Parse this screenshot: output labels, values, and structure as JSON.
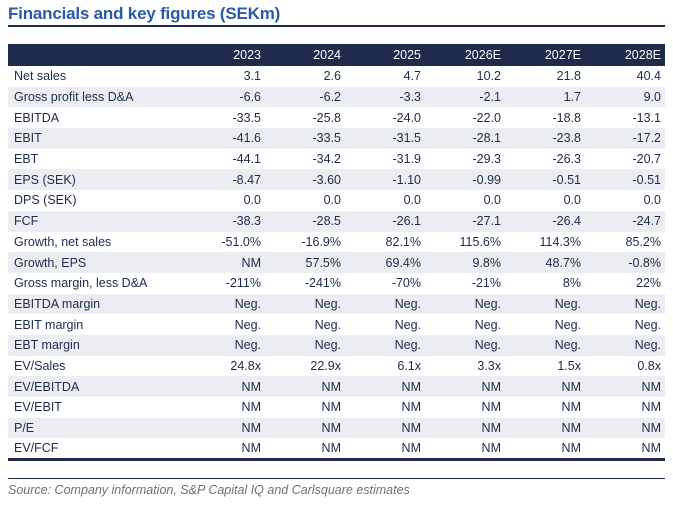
{
  "page": {
    "title": "Financials and key figures (SEKm)",
    "source": "Source: Company information, S&P Capital IQ and Carlsquare estimates"
  },
  "colors": {
    "navy": "#1f2b4d",
    "title_blue": "#2b5aa7",
    "stripe": "#ecedf2",
    "source_gray": "#6d7076",
    "header_text": "#ffffff"
  },
  "chart_data": {
    "type": "table",
    "title": "Financials and key figures (SEKm)",
    "columns": [
      "",
      "2023",
      "2024",
      "2025",
      "2026E",
      "2027E",
      "2028E"
    ],
    "rows": [
      {
        "label": "Net sales",
        "values": [
          "3.1",
          "2.6",
          "4.7",
          "10.2",
          "21.8",
          "40.4"
        ]
      },
      {
        "label": "Gross profit less D&A",
        "values": [
          "-6.6",
          "-6.2",
          "-3.3",
          "-2.1",
          "1.7",
          "9.0"
        ]
      },
      {
        "label": "EBITDA",
        "values": [
          "-33.5",
          "-25.8",
          "-24.0",
          "-22.0",
          "-18.8",
          "-13.1"
        ]
      },
      {
        "label": "EBIT",
        "values": [
          "-41.6",
          "-33.5",
          "-31.5",
          "-28.1",
          "-23.8",
          "-17.2"
        ]
      },
      {
        "label": "EBT",
        "values": [
          "-44.1",
          "-34.2",
          "-31.9",
          "-29.3",
          "-26.3",
          "-20.7"
        ]
      },
      {
        "label": "EPS (SEK)",
        "values": [
          "-8.47",
          "-3.60",
          "-1.10",
          "-0.99",
          "-0.51",
          "-0.51"
        ]
      },
      {
        "label": "DPS (SEK)",
        "values": [
          "0.0",
          "0.0",
          "0.0",
          "0.0",
          "0.0",
          "0.0"
        ]
      },
      {
        "label": "FCF",
        "values": [
          "-38.3",
          "-28.5",
          "-26.1",
          "-27.1",
          "-26.4",
          "-24.7"
        ]
      },
      {
        "label": "Growth, net sales",
        "values": [
          "-51.0%",
          "-16.9%",
          "82.1%",
          "115.6%",
          "114.3%",
          "85.2%"
        ]
      },
      {
        "label": "Growth, EPS",
        "values": [
          "NM",
          "57.5%",
          "69.4%",
          "9.8%",
          "48.7%",
          "-0.8%"
        ]
      },
      {
        "label": "Gross margin, less D&A",
        "values": [
          "-211%",
          "-241%",
          "-70%",
          "-21%",
          "8%",
          "22%"
        ]
      },
      {
        "label": "EBITDA margin",
        "values": [
          "Neg.",
          "Neg.",
          "Neg.",
          "Neg.",
          "Neg.",
          "Neg."
        ]
      },
      {
        "label": "EBIT margin",
        "values": [
          "Neg.",
          "Neg.",
          "Neg.",
          "Neg.",
          "Neg.",
          "Neg."
        ]
      },
      {
        "label": "EBT margin",
        "values": [
          "Neg.",
          "Neg.",
          "Neg.",
          "Neg.",
          "Neg.",
          "Neg."
        ]
      },
      {
        "label": "EV/Sales",
        "values": [
          "24.8x",
          "22.9x",
          "6.1x",
          "3.3x",
          "1.5x",
          "0.8x"
        ]
      },
      {
        "label": "EV/EBITDA",
        "values": [
          "NM",
          "NM",
          "NM",
          "NM",
          "NM",
          "NM"
        ]
      },
      {
        "label": "EV/EBIT",
        "values": [
          "NM",
          "NM",
          "NM",
          "NM",
          "NM",
          "NM"
        ]
      },
      {
        "label": "P/E",
        "values": [
          "NM",
          "NM",
          "NM",
          "NM",
          "NM",
          "NM"
        ]
      },
      {
        "label": "EV/FCF",
        "values": [
          "NM",
          "NM",
          "NM",
          "NM",
          "NM",
          "NM"
        ]
      }
    ]
  }
}
